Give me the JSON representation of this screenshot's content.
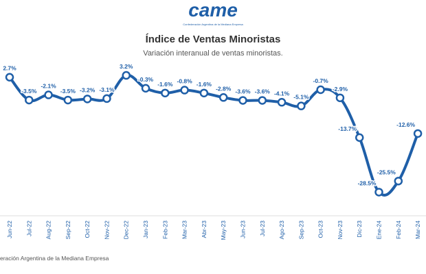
{
  "logo": {
    "text": "came",
    "caption": "Confederación Argentina de la Mediana Empresa"
  },
  "footer": "eración Argentina de la Mediana Empresa",
  "chart_data": {
    "type": "line",
    "title": "Índice de Ventas Minoristas",
    "subtitle": "Variación interanual de ventas minoristas.",
    "categories": [
      "Jun-22",
      "Jul-22",
      "Aug-22",
      "Sep-22",
      "Oct-22",
      "Nov-22",
      "Dec-22",
      "Jan-23",
      "Feb-23",
      "Mar-23",
      "Abr-23",
      "May-23",
      "Jun-23",
      "Jul-23",
      "Ago-23",
      "Sep-23",
      "Oct-23",
      "Nov-23",
      "Dic-23",
      "Ene-24",
      "Feb-24",
      "Mar-24"
    ],
    "values": [
      2.7,
      -3.5,
      -2.1,
      -3.5,
      -3.2,
      -3.1,
      3.2,
      -0.3,
      -1.6,
      -0.8,
      -1.6,
      -2.8,
      -3.6,
      -3.6,
      -4.1,
      -5.1,
      -0.7,
      -2.9,
      -13.7,
      -28.5,
      -25.5,
      -12.6
    ],
    "value_labels": [
      "2.7%",
      "-3.5%",
      "-2.1%",
      "-3.5%",
      "-3.2%",
      "-3.1%",
      "3.2%",
      "-0.3%",
      "-1.6%",
      "-0.8%",
      "-1.6%",
      "-2.8%",
      "-3.6%",
      "-3.6%",
      "-4.1%",
      "-5.1%",
      "-0.7%",
      "-2.9%",
      "-13.7%",
      "-28.5%",
      "-25.5%",
      "-12.6%"
    ],
    "color": "#1f5fa8",
    "ylim": [
      -34,
      6
    ]
  }
}
